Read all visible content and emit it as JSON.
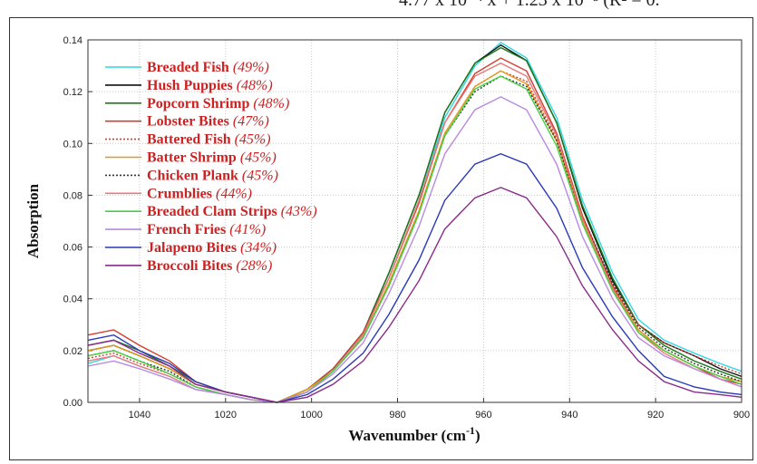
{
  "header_fragment": "4.77 x 10⁻⁴ x + 1.23 x 10⁻³ (R² = 0.",
  "chart_data": {
    "type": "line",
    "xlabel": "Wavenumber (cm",
    "xlabel_sup": "-1",
    "xlabel_close": ")",
    "ylabel": "Absorption",
    "xlim": [
      1052,
      900
    ],
    "ylim": [
      0,
      0.14
    ],
    "x_ticks": [
      1040,
      1020,
      1000,
      980,
      960,
      940,
      920,
      900
    ],
    "y_ticks": [
      "0.00",
      "0.02",
      "0.04",
      "0.06",
      "0.08",
      "0.10",
      "0.12",
      "0.14"
    ],
    "grid": true,
    "legend_position": "top-left",
    "x": [
      1052,
      1046,
      1040,
      1033,
      1027,
      1020,
      1014,
      1008,
      1001,
      995,
      988,
      982,
      975,
      969,
      962,
      956,
      950,
      943,
      937,
      930,
      924,
      918,
      911,
      905,
      900
    ],
    "series": [
      {
        "name": "Breaded Fish",
        "pct": "(49%)",
        "color": "#2fd6e6",
        "dash": "",
        "values": [
          0.015,
          0.018,
          0.014,
          0.01,
          0.005,
          0.003,
          0.001,
          0.0,
          0.004,
          0.012,
          0.026,
          0.048,
          0.078,
          0.11,
          0.13,
          0.139,
          0.133,
          0.11,
          0.078,
          0.05,
          0.032,
          0.024,
          0.019,
          0.015,
          0.012
        ]
      },
      {
        "name": "Hush Puppies",
        "pct": "(48%)",
        "color": "#111111",
        "dash": "",
        "values": [
          0.02,
          0.022,
          0.018,
          0.013,
          0.007,
          0.004,
          0.002,
          0.0,
          0.005,
          0.013,
          0.027,
          0.05,
          0.08,
          0.112,
          0.131,
          0.138,
          0.132,
          0.108,
          0.075,
          0.047,
          0.03,
          0.023,
          0.018,
          0.013,
          0.01
        ]
      },
      {
        "name": "Popcorn Shrimp",
        "pct": "(48%)",
        "color": "#1a7a1a",
        "dash": "",
        "values": [
          0.022,
          0.024,
          0.02,
          0.014,
          0.008,
          0.004,
          0.002,
          0.0,
          0.005,
          0.013,
          0.027,
          0.05,
          0.08,
          0.112,
          0.131,
          0.137,
          0.132,
          0.108,
          0.076,
          0.048,
          0.03,
          0.022,
          0.016,
          0.012,
          0.009
        ]
      },
      {
        "name": "Lobster Bites",
        "pct": "(47%)",
        "color": "#d33d2d",
        "dash": "",
        "values": [
          0.026,
          0.028,
          0.022,
          0.016,
          0.008,
          0.004,
          0.002,
          0.0,
          0.005,
          0.013,
          0.027,
          0.048,
          0.077,
          0.108,
          0.127,
          0.133,
          0.128,
          0.104,
          0.072,
          0.045,
          0.028,
          0.02,
          0.014,
          0.009,
          0.007
        ]
      },
      {
        "name": "Battered Fish",
        "pct": "(45%)",
        "color": "#d33d2d",
        "dash": "2 2",
        "values": [
          0.017,
          0.019,
          0.015,
          0.011,
          0.006,
          0.003,
          0.001,
          0.0,
          0.004,
          0.012,
          0.025,
          0.046,
          0.074,
          0.104,
          0.122,
          0.128,
          0.124,
          0.102,
          0.072,
          0.046,
          0.03,
          0.023,
          0.018,
          0.014,
          0.011
        ]
      },
      {
        "name": "Batter Shrimp",
        "pct": "(45%)",
        "color": "#e09a1a",
        "dash": "",
        "values": [
          0.02,
          0.022,
          0.018,
          0.013,
          0.007,
          0.004,
          0.002,
          0.0,
          0.005,
          0.012,
          0.025,
          0.046,
          0.074,
          0.104,
          0.122,
          0.128,
          0.123,
          0.101,
          0.07,
          0.044,
          0.028,
          0.02,
          0.014,
          0.01,
          0.008
        ]
      },
      {
        "name": "Chicken Plank",
        "pct": "(45%)",
        "color": "#333333",
        "dash": "2 2",
        "values": [
          0.018,
          0.02,
          0.016,
          0.012,
          0.006,
          0.003,
          0.001,
          0.0,
          0.004,
          0.012,
          0.025,
          0.045,
          0.073,
          0.103,
          0.12,
          0.126,
          0.122,
          0.101,
          0.071,
          0.046,
          0.029,
          0.021,
          0.015,
          0.011,
          0.008
        ]
      },
      {
        "name": "Crumblies",
        "pct": "(44%)",
        "color": "#e87a7a",
        "dash": "",
        "values": [
          0.016,
          0.018,
          0.014,
          0.01,
          0.005,
          0.003,
          0.001,
          0.0,
          0.004,
          0.012,
          0.026,
          0.048,
          0.078,
          0.108,
          0.126,
          0.131,
          0.126,
          0.103,
          0.071,
          0.044,
          0.027,
          0.019,
          0.013,
          0.009,
          0.006
        ]
      },
      {
        "name": "Breaded Clam Strips",
        "pct": "(43%)",
        "color": "#44d044",
        "dash": "",
        "values": [
          0.018,
          0.02,
          0.016,
          0.011,
          0.006,
          0.003,
          0.001,
          0.0,
          0.004,
          0.012,
          0.025,
          0.045,
          0.073,
          0.103,
          0.121,
          0.126,
          0.121,
          0.099,
          0.069,
          0.043,
          0.027,
          0.02,
          0.014,
          0.01,
          0.007
        ]
      },
      {
        "name": "French Fries",
        "pct": "(41%)",
        "color": "#b88ae0",
        "dash": "",
        "values": [
          0.014,
          0.016,
          0.013,
          0.009,
          0.005,
          0.003,
          0.001,
          0.0,
          0.004,
          0.011,
          0.023,
          0.042,
          0.068,
          0.096,
          0.113,
          0.118,
          0.113,
          0.092,
          0.064,
          0.04,
          0.025,
          0.018,
          0.013,
          0.009,
          0.006
        ]
      },
      {
        "name": "Jalapeno Bites",
        "pct": "(34%)",
        "color": "#2a3ab8",
        "dash": "",
        "values": [
          0.024,
          0.026,
          0.02,
          0.015,
          0.008,
          0.004,
          0.002,
          0.0,
          0.003,
          0.009,
          0.019,
          0.034,
          0.055,
          0.078,
          0.092,
          0.096,
          0.092,
          0.075,
          0.052,
          0.033,
          0.02,
          0.01,
          0.006,
          0.004,
          0.003
        ]
      },
      {
        "name": "Broccoli Bites",
        "pct": "(28%)",
        "color": "#8a2a8a",
        "dash": "",
        "values": [
          0.022,
          0.024,
          0.019,
          0.014,
          0.007,
          0.004,
          0.002,
          0.0,
          0.002,
          0.007,
          0.016,
          0.029,
          0.047,
          0.067,
          0.079,
          0.083,
          0.079,
          0.064,
          0.045,
          0.028,
          0.016,
          0.008,
          0.004,
          0.003,
          0.002
        ]
      }
    ]
  }
}
